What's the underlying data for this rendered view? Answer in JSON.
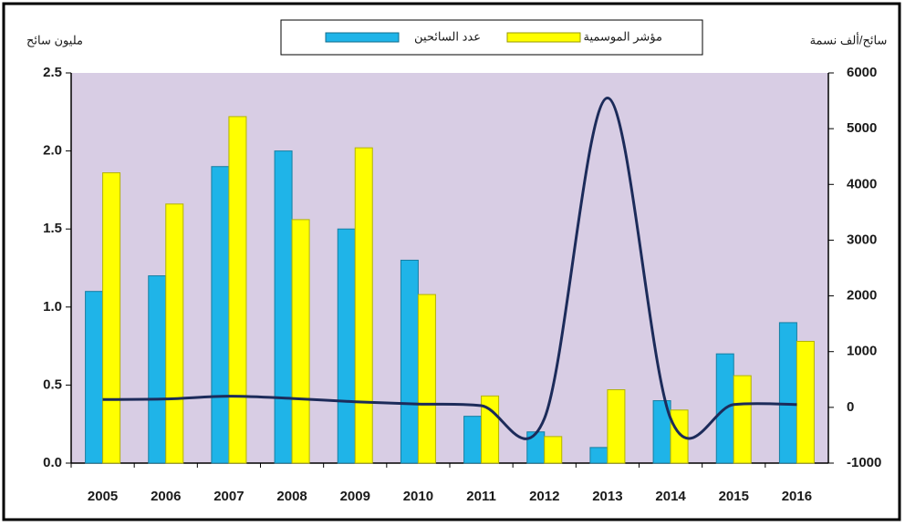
{
  "chart_data": {
    "type": "bar-line",
    "y_label": "مليون سائح",
    "y2_label": "سائح/ألف نسمة",
    "categories": [
      "2005",
      "2006",
      "2007",
      "2008",
      "2009",
      "2010",
      "2011",
      "2012",
      "2013",
      "2014",
      "2015",
      "2016"
    ],
    "series": [
      {
        "name": "عدد السائحين",
        "color": "#1fb4e8",
        "type": "bar",
        "values": [
          1.1,
          1.2,
          1.9,
          2.0,
          1.5,
          1.3,
          0.3,
          0.2,
          0.1,
          0.4,
          0.7,
          0.9
        ]
      },
      {
        "name": "مؤشر الموسمية",
        "color": "#ffff00",
        "type": "bar",
        "values": [
          1.86,
          1.66,
          2.22,
          1.56,
          2.02,
          1.08,
          0.43,
          0.17,
          0.47,
          0.34,
          0.56,
          0.78
        ]
      },
      {
        "color": "#1c2b5a",
        "type": "line",
        "axis": "y2",
        "values": [
          140,
          150,
          200,
          160,
          100,
          60,
          30,
          -200,
          5550,
          -200,
          50,
          50
        ]
      }
    ],
    "ylim": [
      0,
      2.5
    ],
    "yticks": [
      {
        "value": 0,
        "label": "0.0"
      },
      0.5,
      {
        "value": 1,
        "label": "1.0"
      },
      1.5,
      {
        "value": 2,
        "label": "2.0"
      },
      2.5
    ],
    "y2lim": [
      -1000,
      6000
    ],
    "y2ticks": [
      -1000,
      0,
      1000,
      2000,
      3000,
      4000,
      5000,
      6000
    ],
    "grid": false,
    "legend": "top"
  }
}
